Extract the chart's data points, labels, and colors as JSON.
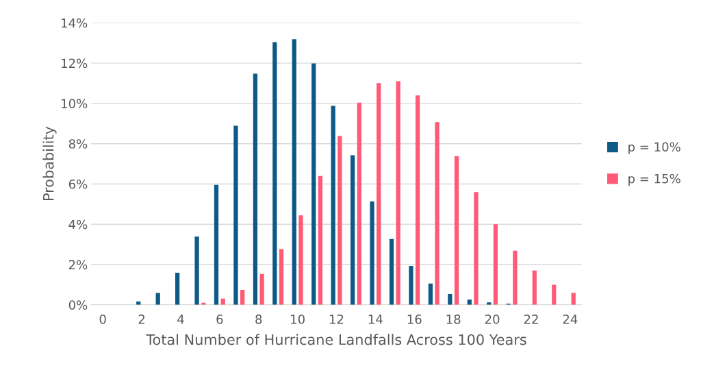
{
  "chart_data": {
    "type": "bar",
    "xlabel": "Total Number of Hurricane Landfalls Across 100 Years",
    "ylabel": "Probability",
    "categories": [
      "0",
      null,
      "2",
      null,
      "4",
      null,
      "6",
      null,
      "8",
      null,
      "10",
      null,
      "12",
      null,
      "14",
      null,
      "16",
      null,
      "18",
      null,
      "20",
      null,
      "22",
      null,
      "24"
    ],
    "series": [
      {
        "name": "p = 10%",
        "color": "#0e5a87",
        "values": [
          0.0,
          null,
          0.16,
          0.59,
          1.59,
          3.39,
          5.96,
          8.89,
          11.48,
          13.04,
          13.19,
          11.99,
          9.88,
          7.43,
          5.13,
          3.27,
          1.93,
          1.06,
          0.54,
          0.26,
          0.12,
          0.05,
          null,
          null,
          0.0
        ]
      },
      {
        "name": "p = 15%",
        "color": "#ff5a76",
        "values": [
          0.0,
          0.0,
          0.0,
          0.0,
          null,
          0.1,
          0.31,
          0.74,
          1.53,
          2.77,
          4.44,
          6.4,
          8.38,
          10.04,
          11.01,
          11.1,
          10.4,
          9.07,
          7.38,
          5.6,
          4.0,
          2.69,
          1.7,
          1.0,
          0.59
        ]
      }
    ],
    "ylim": [
      0,
      14
    ],
    "yticks": [
      {
        "value": 0,
        "label": "0%"
      },
      {
        "value": 2,
        "label": "2%"
      },
      {
        "value": 4,
        "label": "4%"
      },
      {
        "value": 6,
        "label": "6%"
      },
      {
        "value": 8,
        "label": "8%"
      },
      {
        "value": 10,
        "label": "10%"
      },
      {
        "value": 12,
        "label": "12%"
      },
      {
        "value": 14,
        "label": "14%"
      }
    ],
    "grid": "y",
    "legend": "right"
  }
}
